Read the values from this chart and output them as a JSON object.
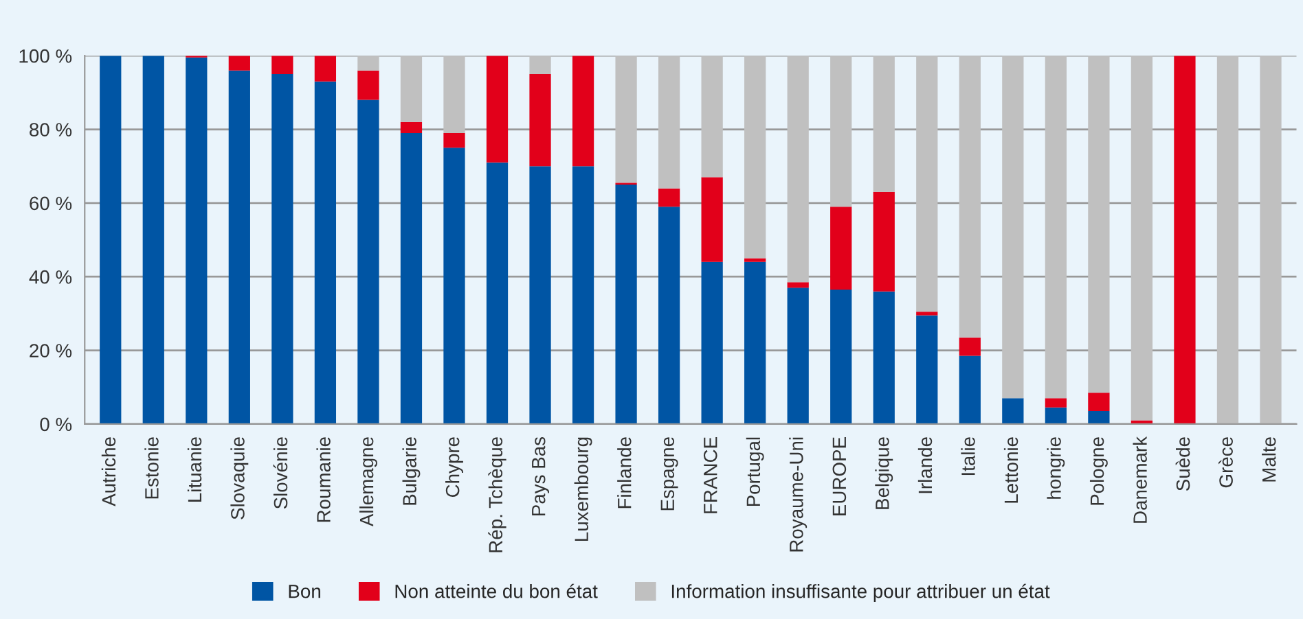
{
  "chart_data": {
    "type": "bar",
    "stacked": true,
    "categories": [
      "Autriche",
      "Estonie",
      "Lituanie",
      "Slovaquie",
      "Slovénie",
      "Roumanie",
      "Allemagne",
      "Bulgarie",
      "Chypre",
      "Rép. Tchèque",
      "Pays Bas",
      "Luxembourg",
      "Finlande",
      "Espagne",
      "FRANCE",
      "Portugal",
      "Royaume-Uni",
      "EUROPE",
      "Belgique",
      "Irlande",
      "Italie",
      "Lettonie",
      "hongrie",
      "Pologne",
      "Danemark",
      "Suède",
      "Grèce",
      "Malte"
    ],
    "series": [
      {
        "name": "Bon",
        "color": "#0055a4",
        "values": [
          100,
          100,
          99.5,
          96,
          95,
          93,
          88,
          79,
          75,
          71,
          70,
          70,
          65,
          59,
          44,
          44,
          37,
          36.5,
          36,
          29.5,
          18.5,
          7,
          4.5,
          3.5,
          0,
          0,
          0,
          0
        ]
      },
      {
        "name": "Non atteinte du bon état",
        "color": "#e2001a",
        "values": [
          0,
          0,
          0.5,
          4,
          5,
          7,
          8,
          3,
          4,
          29,
          25,
          30,
          0.5,
          5,
          23,
          1,
          1.5,
          22.5,
          27,
          1,
          5,
          0,
          2.5,
          5,
          1,
          100,
          0,
          0
        ]
      },
      {
        "name": "Information insuffisante pour attribuer un état",
        "color": "#c0c0c0",
        "values": [
          0,
          0,
          0,
          0,
          0,
          0,
          4,
          18,
          21,
          0,
          5,
          0,
          34.5,
          36,
          33,
          55,
          61.5,
          41,
          37,
          69.5,
          76.5,
          93,
          93,
          91.5,
          99,
          0,
          100,
          100
        ]
      }
    ],
    "ylim": [
      0,
      100
    ],
    "yticks": [
      {
        "value": 0,
        "label": "0 %"
      },
      {
        "value": 20,
        "label": "20 %"
      },
      {
        "value": 40,
        "label": "40 %"
      },
      {
        "value": 60,
        "label": "60 %"
      },
      {
        "value": 80,
        "label": "80 %"
      },
      {
        "value": 100,
        "label": "100 %"
      }
    ],
    "grid": "y",
    "legend": "bottom"
  }
}
